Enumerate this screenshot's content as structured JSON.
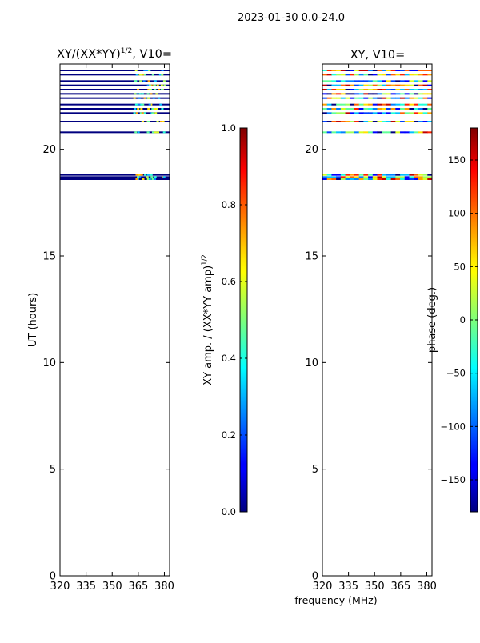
{
  "suptitle": "2023-01-30 0.0-24.0",
  "chart_data": [
    {
      "type": "heatmap",
      "title": "XY/(XX*YY)",
      "title_sup": "1/2",
      "title_suffix": ", V10=",
      "xlabel": "",
      "ylabel": "UT (hours)",
      "xlim": [
        320,
        383
      ],
      "ylim": [
        0,
        24
      ],
      "xticks": [
        320,
        335,
        350,
        365,
        380
      ],
      "yticks": [
        0,
        5,
        10,
        15,
        20
      ],
      "colorbar": {
        "label": "XY amp. / (XX*YY amp)",
        "label_sup": "1/2",
        "range": [
          0.0,
          1.0
        ],
        "ticks": [
          "0.0",
          "0.2",
          "0.4",
          "0.6",
          "0.8",
          "1.0"
        ],
        "colormap": "jet"
      },
      "data_hours": [
        18.6,
        18.7,
        18.8,
        20.8,
        21.3,
        21.7,
        21.9,
        22.1,
        22.4,
        22.6,
        22.8,
        23.0,
        23.2,
        23.5,
        23.7
      ]
    },
    {
      "type": "heatmap",
      "title": "XY, V10=",
      "xlabel": "frequency (MHz)",
      "ylabel": "",
      "xlim": [
        320,
        383
      ],
      "ylim": [
        0,
        24
      ],
      "xticks": [
        320,
        335,
        350,
        365,
        380
      ],
      "yticks": [
        0,
        5,
        10,
        15,
        20
      ],
      "colorbar": {
        "label": "phase (deg.)",
        "range": [
          -180,
          180
        ],
        "ticks": [
          "−150",
          "−100",
          "−50",
          "0",
          "50",
          "100",
          "150"
        ],
        "tick_values": [
          -150,
          -100,
          -50,
          0,
          50,
          100,
          150
        ],
        "colormap": "jet"
      },
      "data_hours": [
        18.6,
        18.7,
        18.8,
        20.8,
        21.3,
        21.7,
        21.9,
        22.1,
        22.4,
        22.6,
        22.8,
        23.0,
        23.2,
        23.5,
        23.7
      ]
    }
  ]
}
